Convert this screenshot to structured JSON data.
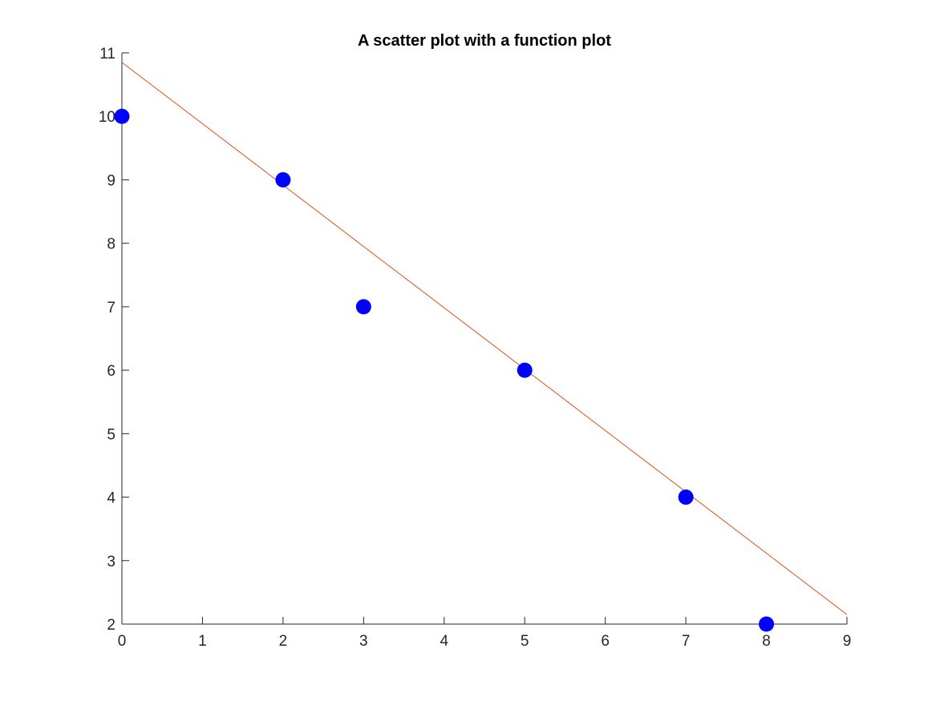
{
  "chart_data": {
    "type": "scatter",
    "title": "A scatter plot with a function plot",
    "xlabel": "",
    "ylabel": "",
    "xlim": [
      0,
      9
    ],
    "ylim": [
      2,
      11
    ],
    "x_ticks": [
      0,
      1,
      2,
      3,
      4,
      5,
      6,
      7,
      8,
      9
    ],
    "y_ticks": [
      2,
      3,
      4,
      5,
      6,
      7,
      8,
      9,
      10,
      11
    ],
    "grid": false,
    "legend": "none",
    "series": [
      {
        "type": "scatter",
        "x": [
          0,
          2,
          3,
          5,
          7,
          8
        ],
        "y": [
          10,
          9,
          7,
          6,
          4,
          2
        ],
        "color": "#0000ff"
      },
      {
        "type": "line",
        "x": [
          0,
          9
        ],
        "y": [
          10.85,
          2.15
        ],
        "color": "#d95319"
      }
    ]
  }
}
